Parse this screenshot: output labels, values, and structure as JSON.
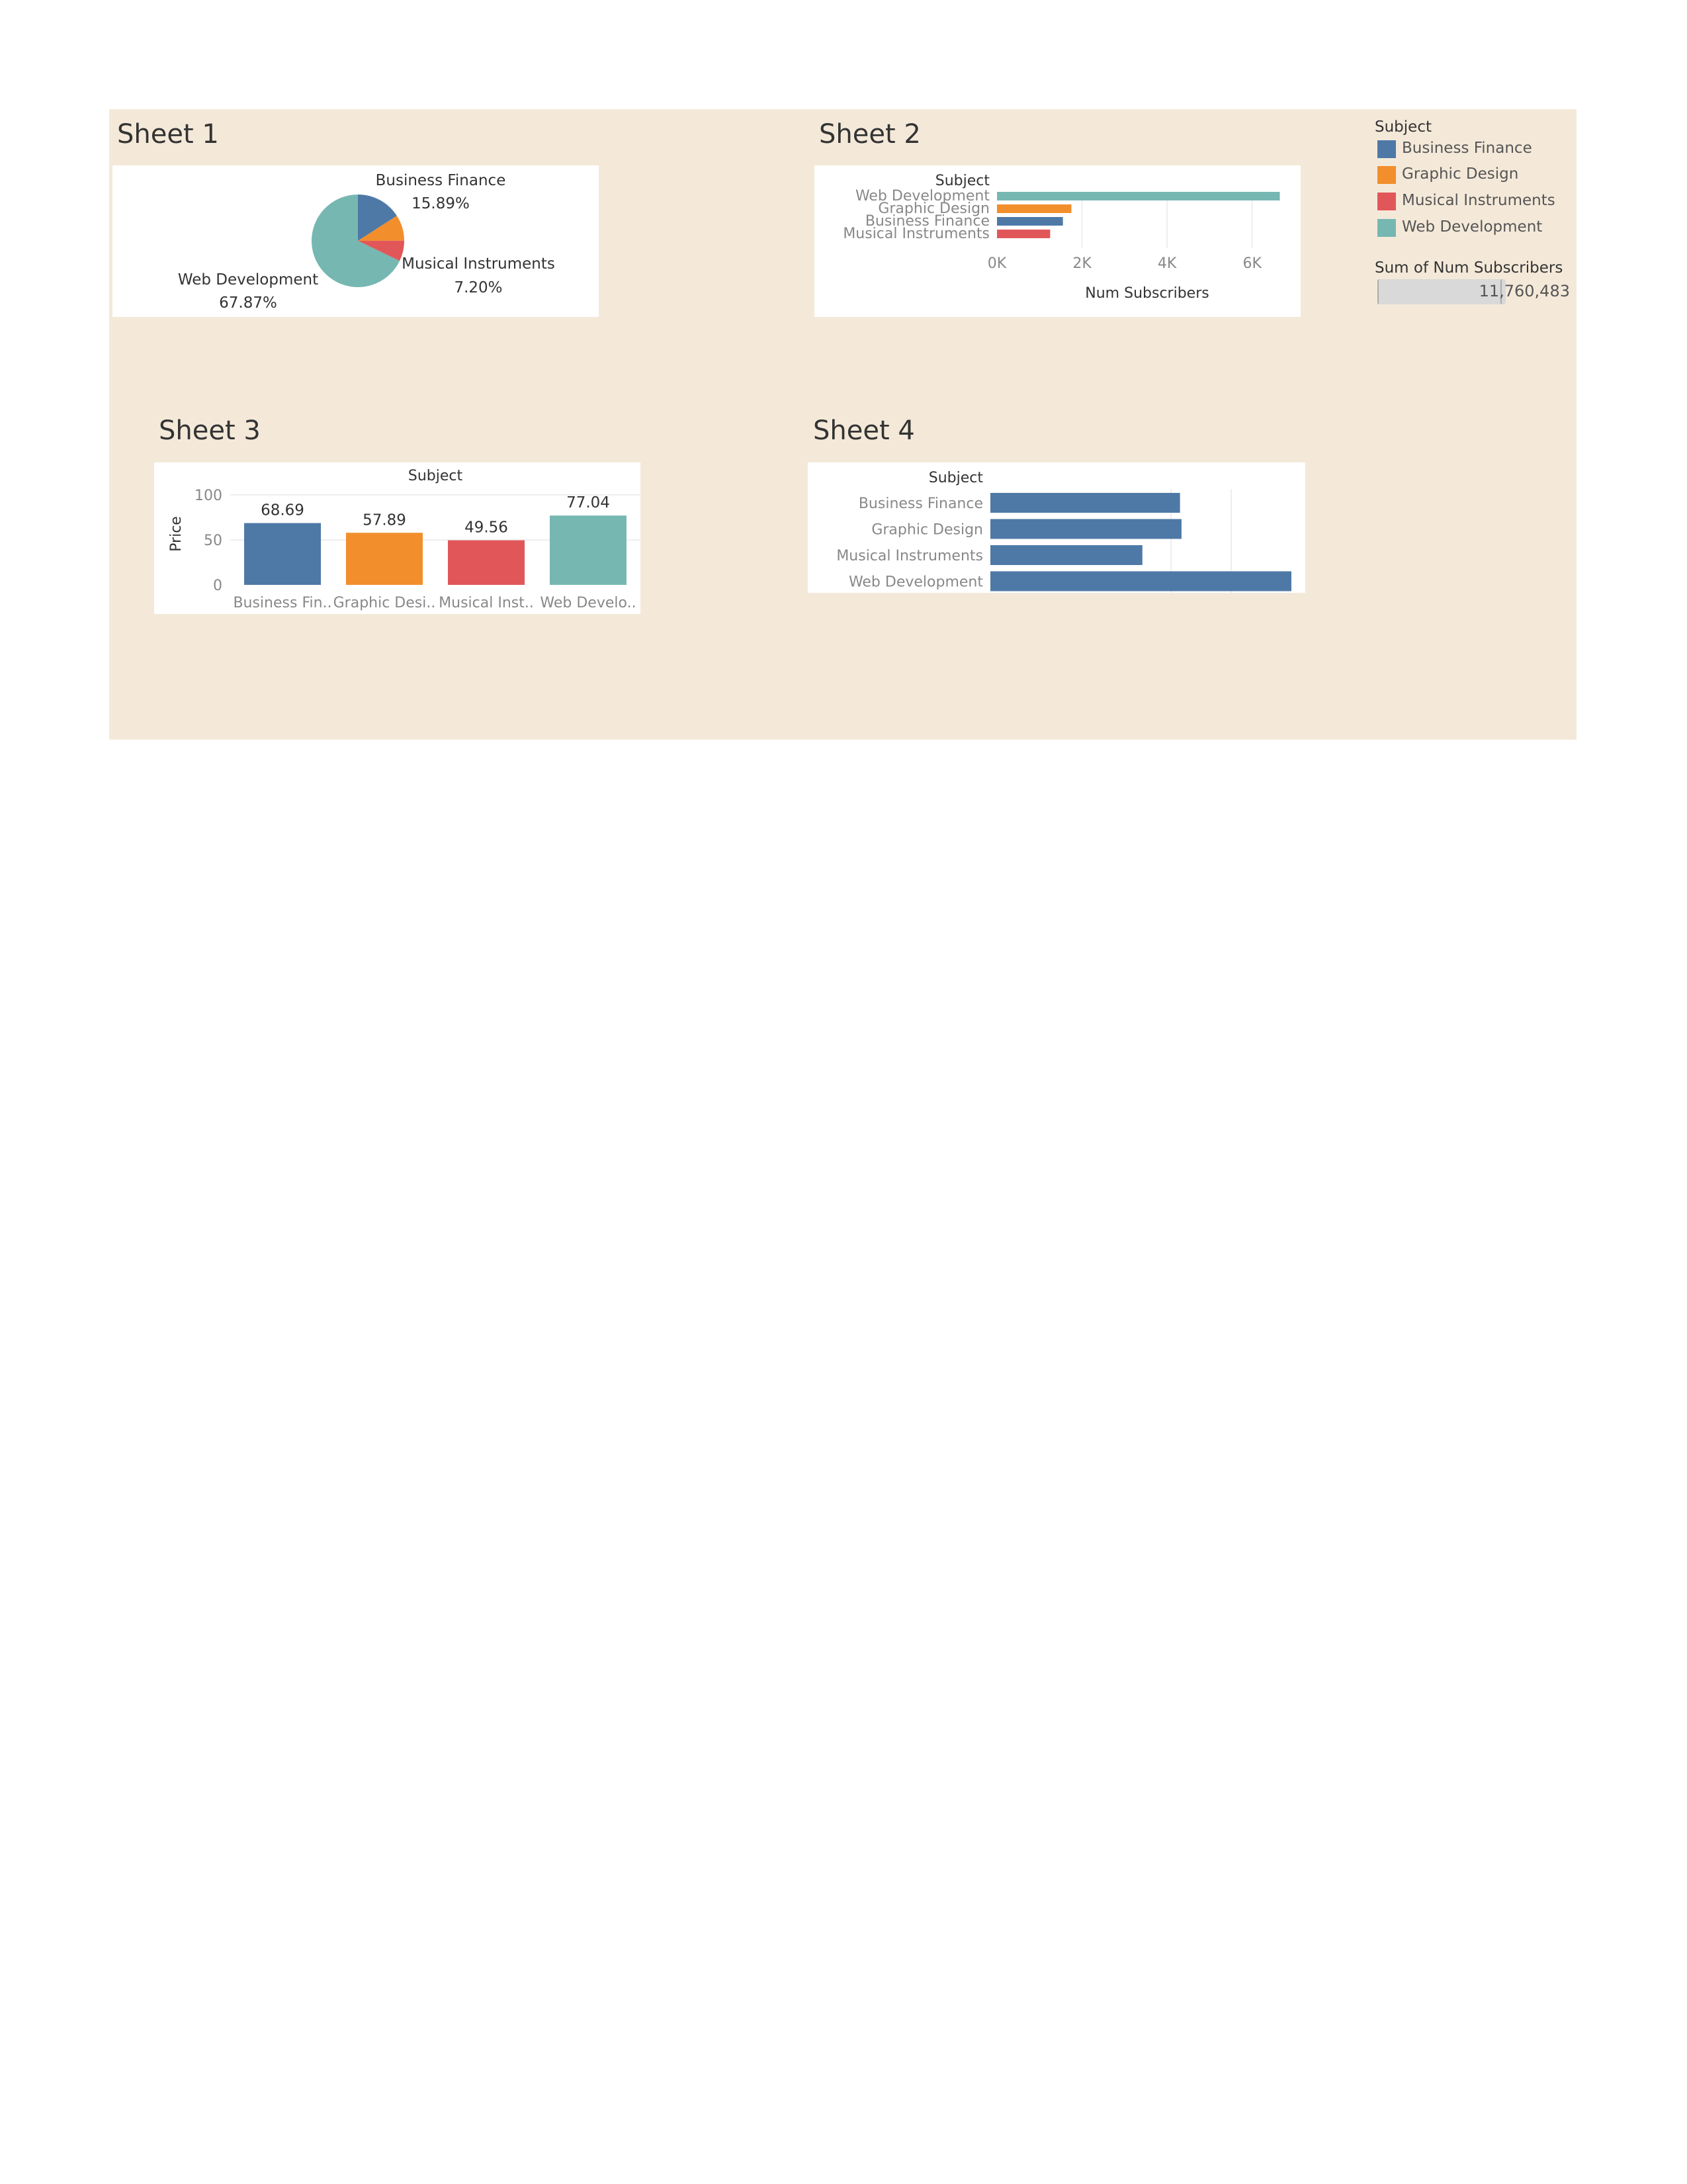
{
  "dashboard": {
    "sheets": [
      {
        "title": "Sheet 1"
      },
      {
        "title": "Sheet 2"
      },
      {
        "title": "Sheet 3"
      },
      {
        "title": "Sheet 4"
      }
    ]
  },
  "legend": {
    "title": "Subject",
    "items": [
      {
        "label": "Business Finance",
        "color": "#4e79a7"
      },
      {
        "label": "Graphic Design",
        "color": "#f28e2b"
      },
      {
        "label": "Musical Instruments",
        "color": "#e15759"
      },
      {
        "label": "Web Development",
        "color": "#76b7b2"
      }
    ]
  },
  "filter": {
    "title": "Sum of Num Subscribers",
    "value": "11,760,483"
  },
  "chart_data": [
    {
      "type": "pie",
      "categories": [
        "Business Finance",
        "Graphic Design",
        "Musical Instruments",
        "Web Development"
      ],
      "values": [
        15.89,
        9.04,
        7.2,
        67.87
      ],
      "colors": [
        "#4e79a7",
        "#f28e2b",
        "#e15759",
        "#76b7b2"
      ],
      "labels": [
        {
          "name": "Business Finance",
          "pct": "15.89%"
        },
        {
          "name": "Musical Instruments",
          "pct": "7.20%"
        },
        {
          "name": "Web Development",
          "pct": "67.87%"
        }
      ]
    },
    {
      "type": "bar",
      "orientation": "horizontal",
      "row_header": "Subject",
      "categories": [
        "Web Development",
        "Graphic Design",
        "Business Finance",
        "Musical Instruments"
      ],
      "values": [
        6650,
        1750,
        1550,
        1250
      ],
      "colors": [
        "#76b7b2",
        "#f28e2b",
        "#4e79a7",
        "#e15759"
      ],
      "xlabel": "Num Subscribers",
      "xticks": [
        "0K",
        "2K",
        "4K",
        "6K"
      ],
      "xtick_values": [
        0,
        2000,
        4000,
        6000
      ],
      "xlim": [
        0,
        7000
      ]
    },
    {
      "type": "bar",
      "column_header": "Subject",
      "categories": [
        "Business Fin..",
        "Graphic Desi..",
        "Musical Inst..",
        "Web Develo.."
      ],
      "values": [
        68.69,
        57.89,
        49.56,
        77.04
      ],
      "value_labels": [
        "68.69",
        "57.89",
        "49.56",
        "77.04"
      ],
      "colors": [
        "#4e79a7",
        "#f28e2b",
        "#e15759",
        "#76b7b2"
      ],
      "ylabel": "Price",
      "yticks": [
        "100",
        "50",
        "0"
      ],
      "ytick_values": [
        100,
        50,
        0
      ],
      "ylim": [
        0,
        100
      ]
    },
    {
      "type": "bar",
      "orientation": "horizontal",
      "row_header": "Subject",
      "categories": [
        "Business Finance",
        "Graphic Design",
        "Musical Instruments",
        "Web Development"
      ],
      "values": [
        630,
        635,
        505,
        1000
      ],
      "color": "#4e79a7",
      "xlim": [
        0,
        1000
      ]
    }
  ]
}
